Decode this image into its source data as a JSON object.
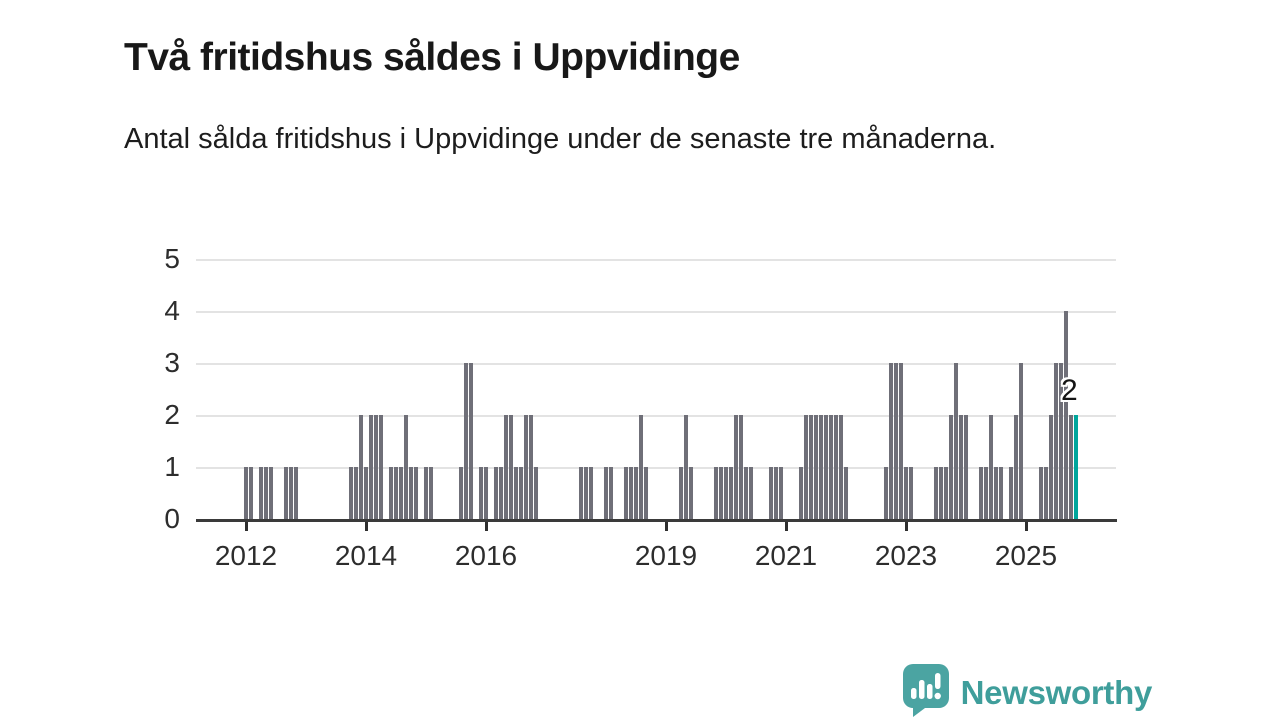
{
  "title": "Två fritidshus såldes i Uppvidinge",
  "subtitle": "Antal sålda fritidshus i Uppvidinge under de senaste tre månaderna.",
  "annotation_label": "2",
  "branding": {
    "name": "Newsworthy",
    "icon": "speech-bubble-bar-chart-icon",
    "text_color": "#3f9e9b",
    "icon_color": "#4ba4a2"
  },
  "colors": {
    "bar": "#6f6f78",
    "highlight": "#00a69c",
    "axis": "#3a3a3a",
    "gridline": "#e3e3e3"
  },
  "chart_data": {
    "type": "bar",
    "title": "Två fritidshus såldes i Uppvidinge",
    "subtitle": "Antal sålda fritidshus i Uppvidinge under de senaste tre månaderna.",
    "x_unit": "month",
    "x_start": "2012-01",
    "x_end": "2025-11",
    "ylim": [
      0,
      5
    ],
    "yticks": [
      0,
      1,
      2,
      3,
      4,
      5
    ],
    "xtick_labels": [
      "2012",
      "2014",
      "2016",
      "2019",
      "2021",
      "2023",
      "2025"
    ],
    "grid": true,
    "legend": false,
    "highlight_index": 166,
    "highlight_value_label": "2",
    "values": [
      1,
      1,
      0,
      1,
      1,
      1,
      0,
      0,
      1,
      1,
      1,
      0,
      0,
      0,
      0,
      0,
      0,
      0,
      0,
      0,
      0,
      1,
      1,
      2,
      1,
      2,
      2,
      2,
      0,
      1,
      1,
      1,
      2,
      1,
      1,
      0,
      1,
      1,
      0,
      0,
      0,
      0,
      0,
      1,
      3,
      3,
      0,
      1,
      1,
      0,
      1,
      1,
      2,
      2,
      1,
      1,
      2,
      2,
      1,
      0,
      0,
      0,
      0,
      0,
      0,
      0,
      0,
      1,
      1,
      1,
      0,
      0,
      1,
      1,
      0,
      0,
      1,
      1,
      1,
      2,
      1,
      0,
      0,
      0,
      0,
      0,
      0,
      1,
      2,
      1,
      0,
      0,
      0,
      0,
      1,
      1,
      1,
      1,
      2,
      2,
      1,
      1,
      0,
      0,
      0,
      1,
      1,
      1,
      0,
      0,
      0,
      1,
      2,
      2,
      2,
      2,
      2,
      2,
      2,
      2,
      1,
      0,
      0,
      0,
      0,
      0,
      0,
      0,
      1,
      3,
      3,
      3,
      1,
      1,
      0,
      0,
      0,
      0,
      1,
      1,
      1,
      2,
      3,
      2,
      2,
      0,
      0,
      1,
      1,
      2,
      1,
      1,
      0,
      1,
      2,
      3,
      0,
      0,
      0,
      1,
      1,
      2,
      3,
      3,
      4,
      2,
      2
    ]
  }
}
